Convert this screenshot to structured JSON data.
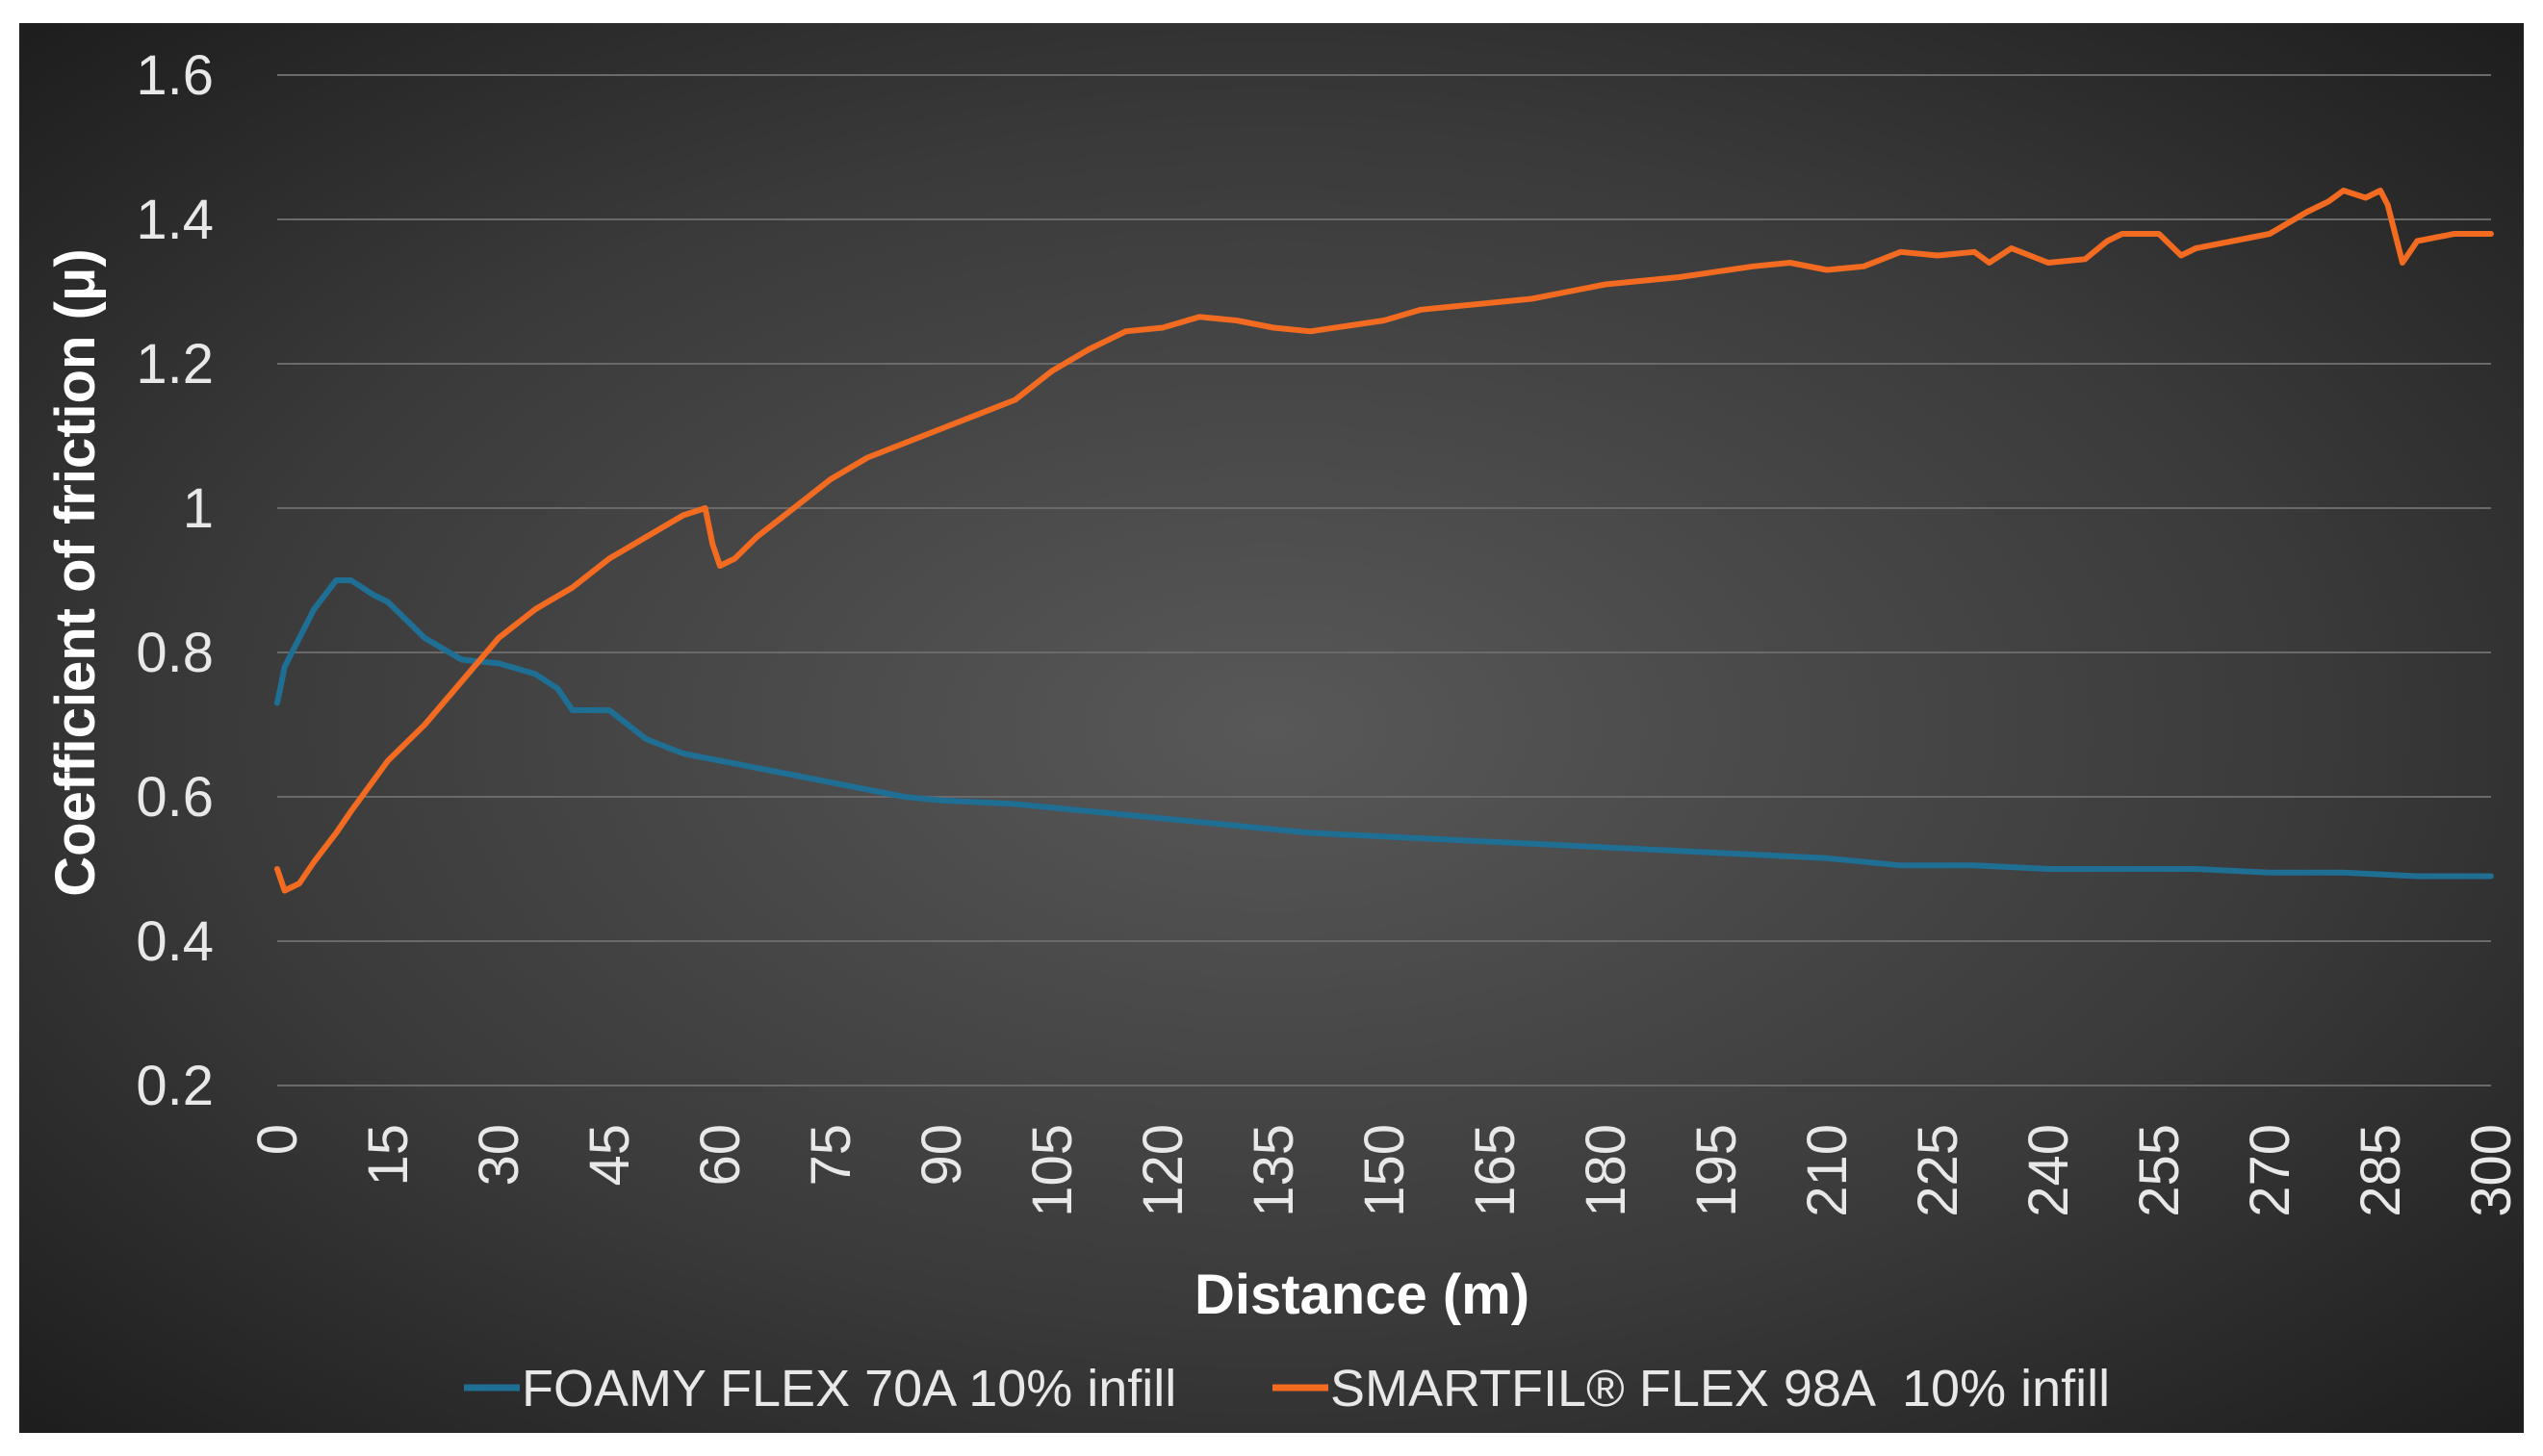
{
  "chart_data": {
    "type": "line",
    "title": "",
    "xlabel": "Distance (m)",
    "ylabel": "Coefficient of friction (μ)",
    "xlim": [
      0,
      300
    ],
    "ylim": [
      0.2,
      1.6
    ],
    "x_ticks": [
      "0",
      "15",
      "30",
      "45",
      "60",
      "75",
      "90",
      "105",
      "120",
      "135",
      "150",
      "165",
      "180",
      "195",
      "210",
      "225",
      "240",
      "255",
      "270",
      "285",
      "300"
    ],
    "y_ticks": [
      "0.2",
      "0.4",
      "0.6",
      "0.8",
      "1",
      "1.2",
      "1.4",
      "1.6"
    ],
    "grid": true,
    "legend_position": "bottom",
    "series": [
      {
        "name": "FOAMY FLEX 70A 10% infill",
        "color": "#1f6e93",
        "x": [
          0,
          1,
          3,
          5,
          8,
          10,
          13,
          15,
          18,
          20,
          25,
          30,
          35,
          38,
          40,
          42,
          45,
          50,
          55,
          60,
          65,
          70,
          75,
          80,
          85,
          90,
          100,
          110,
          120,
          130,
          140,
          150,
          160,
          170,
          180,
          190,
          200,
          210,
          220,
          230,
          240,
          250,
          260,
          270,
          280,
          290,
          300
        ],
        "y": [
          0.73,
          0.78,
          0.82,
          0.86,
          0.9,
          0.9,
          0.88,
          0.87,
          0.84,
          0.82,
          0.79,
          0.785,
          0.77,
          0.75,
          0.72,
          0.72,
          0.72,
          0.68,
          0.66,
          0.65,
          0.64,
          0.63,
          0.62,
          0.61,
          0.6,
          0.595,
          0.59,
          0.58,
          0.57,
          0.56,
          0.55,
          0.545,
          0.54,
          0.535,
          0.53,
          0.525,
          0.52,
          0.515,
          0.505,
          0.505,
          0.5,
          0.5,
          0.5,
          0.495,
          0.495,
          0.49,
          0.49
        ]
      },
      {
        "name": "SMARTFIL® FLEX 98A  10% infill",
        "color": "#f26b21",
        "x": [
          0,
          1,
          3,
          5,
          8,
          10,
          15,
          20,
          25,
          30,
          35,
          40,
          45,
          50,
          55,
          58,
          59,
          60,
          62,
          65,
          70,
          75,
          80,
          90,
          100,
          105,
          110,
          115,
          120,
          125,
          130,
          135,
          140,
          150,
          155,
          160,
          170,
          180,
          190,
          200,
          205,
          210,
          215,
          220,
          225,
          230,
          232,
          235,
          240,
          245,
          248,
          250,
          255,
          258,
          260,
          265,
          270,
          275,
          278,
          280,
          283,
          285,
          286,
          288,
          290,
          295,
          300
        ],
        "y": [
          0.5,
          0.47,
          0.48,
          0.51,
          0.55,
          0.58,
          0.65,
          0.7,
          0.76,
          0.82,
          0.86,
          0.89,
          0.93,
          0.96,
          0.99,
          1.0,
          0.95,
          0.92,
          0.93,
          0.96,
          1.0,
          1.04,
          1.07,
          1.11,
          1.15,
          1.19,
          1.22,
          1.245,
          1.25,
          1.265,
          1.26,
          1.25,
          1.245,
          1.26,
          1.275,
          1.28,
          1.29,
          1.31,
          1.32,
          1.335,
          1.34,
          1.33,
          1.335,
          1.355,
          1.35,
          1.355,
          1.34,
          1.36,
          1.34,
          1.345,
          1.37,
          1.38,
          1.38,
          1.35,
          1.36,
          1.37,
          1.38,
          1.41,
          1.425,
          1.44,
          1.43,
          1.44,
          1.42,
          1.34,
          1.37,
          1.38,
          1.38
        ]
      }
    ]
  },
  "colors": {
    "background_outer": "#ffffff",
    "plot_center": "#555555",
    "plot_edge": "#202020",
    "gridline": "#6a6a6a",
    "foamy": "#1f6e93",
    "smartfil": "#f26b21"
  }
}
